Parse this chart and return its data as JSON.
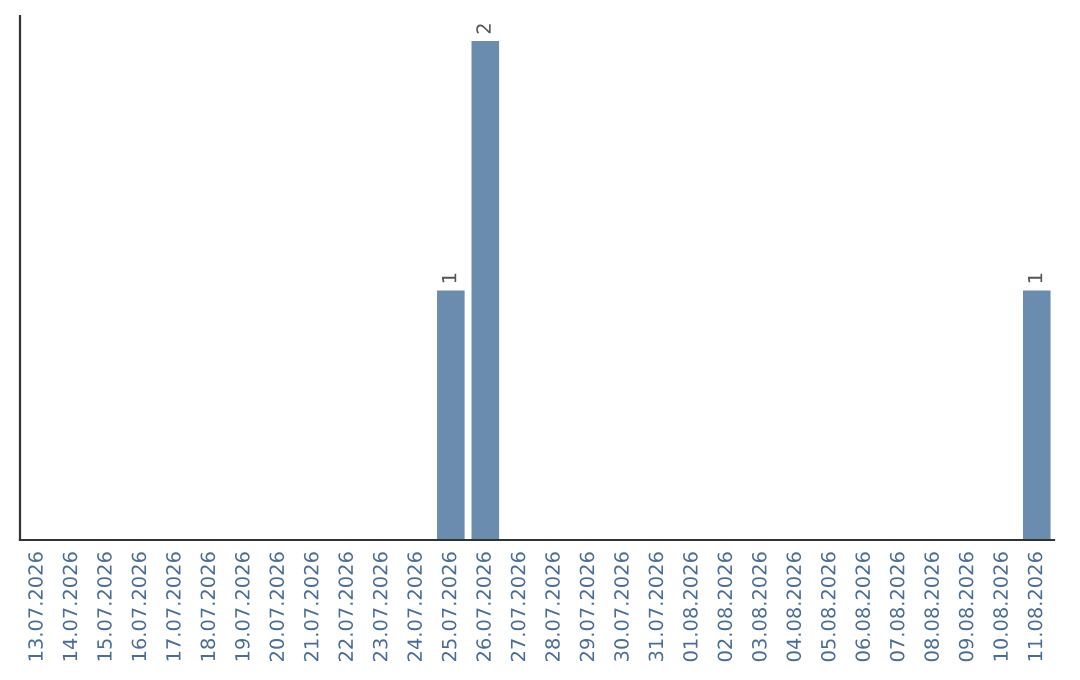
{
  "chart_data": {
    "type": "bar",
    "categories": [
      "13.07.2026",
      "14.07.2026",
      "15.07.2026",
      "16.07.2026",
      "17.07.2026",
      "18.07.2026",
      "19.07.2026",
      "20.07.2026",
      "21.07.2026",
      "22.07.2026",
      "23.07.2026",
      "24.07.2026",
      "25.07.2026",
      "26.07.2026",
      "27.07.2026",
      "28.07.2026",
      "29.07.2026",
      "30.07.2026",
      "31.07.2026",
      "01.08.2026",
      "02.08.2026",
      "03.08.2026",
      "04.08.2026",
      "05.08.2026",
      "06.08.2026",
      "07.08.2026",
      "08.08.2026",
      "09.08.2026",
      "10.08.2026",
      "11.08.2026"
    ],
    "values": [
      null,
      null,
      null,
      null,
      null,
      null,
      null,
      null,
      null,
      null,
      null,
      null,
      1,
      2,
      null,
      null,
      null,
      null,
      null,
      null,
      null,
      null,
      null,
      null,
      null,
      null,
      null,
      null,
      null,
      1
    ],
    "color": "#6a8caf",
    "ylim": [
      0,
      2.1
    ],
    "tick_labels": "x",
    "data_labels": true,
    "grid": false,
    "legend": false
  }
}
